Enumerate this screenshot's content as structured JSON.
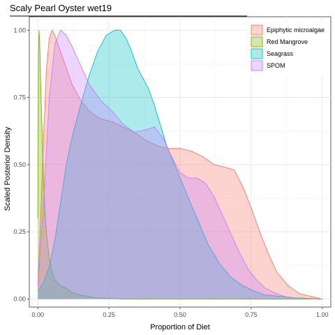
{
  "chart_data": {
    "type": "area",
    "title": "Scaly Pearl Oyster wet19",
    "xlabel": "Proportion of Diet",
    "ylabel": "Scaled Posterior Density",
    "xlim": [
      -0.03,
      1.03
    ],
    "ylim": [
      -0.03,
      1.05
    ],
    "x_ticks": [
      "0.00",
      "0.25",
      "0.50",
      "0.75",
      "1.00"
    ],
    "x_tick_values": [
      0,
      0.25,
      0.5,
      0.75,
      1.0
    ],
    "y_ticks": [
      "0.00",
      "0.25",
      "0.50",
      "0.75",
      "1.00"
    ],
    "y_tick_values": [
      0,
      0.25,
      0.5,
      0.75,
      1.0
    ],
    "grid": true,
    "legend_position": "top-right",
    "series": [
      {
        "name": "Epiphytic microalgae",
        "fill": "#F8766D",
        "stroke": "#F8766D",
        "x": [
          0.0,
          0.01,
          0.02,
          0.03,
          0.04,
          0.05,
          0.06,
          0.08,
          0.1,
          0.12,
          0.15,
          0.18,
          0.22,
          0.26,
          0.3,
          0.34,
          0.38,
          0.42,
          0.46,
          0.5,
          0.54,
          0.58,
          0.62,
          0.66,
          0.69,
          0.72,
          0.75,
          0.78,
          0.81,
          0.84,
          0.88,
          0.92,
          0.96,
          1.0
        ],
        "y": [
          0.05,
          0.3,
          0.6,
          0.85,
          0.97,
          1.0,
          0.98,
          0.92,
          0.86,
          0.8,
          0.74,
          0.7,
          0.67,
          0.66,
          0.64,
          0.62,
          0.59,
          0.57,
          0.56,
          0.56,
          0.55,
          0.53,
          0.5,
          0.49,
          0.48,
          0.42,
          0.34,
          0.25,
          0.17,
          0.1,
          0.05,
          0.02,
          0.01,
          0.0
        ]
      },
      {
        "name": "Red Mangrove",
        "fill": "#7CAE00",
        "stroke": "#7CAE00",
        "x": [
          0.0,
          0.002,
          0.004,
          0.006,
          0.008,
          0.01,
          0.015,
          0.02,
          0.025,
          0.03,
          0.04,
          0.05,
          0.06,
          0.07,
          0.08,
          0.1,
          0.12,
          0.15,
          0.2,
          0.3,
          0.5,
          0.7,
          1.0
        ],
        "y": [
          0.3,
          0.9,
          1.0,
          0.97,
          0.9,
          0.8,
          0.62,
          0.45,
          0.33,
          0.25,
          0.15,
          0.1,
          0.07,
          0.06,
          0.05,
          0.04,
          0.025,
          0.015,
          0.005,
          0.0,
          0.0,
          0.0,
          0.0
        ]
      },
      {
        "name": "Seagrass",
        "fill": "#00BFC4",
        "stroke": "#00BFC4",
        "x": [
          0.0,
          0.02,
          0.04,
          0.06,
          0.08,
          0.1,
          0.12,
          0.15,
          0.18,
          0.21,
          0.24,
          0.27,
          0.29,
          0.31,
          0.33,
          0.35,
          0.37,
          0.39,
          0.41,
          0.43,
          0.45,
          0.48,
          0.52,
          0.56,
          0.6,
          0.64,
          0.68,
          0.72,
          0.76,
          0.8,
          0.85,
          0.9,
          1.0
        ],
        "y": [
          0.03,
          0.06,
          0.12,
          0.22,
          0.36,
          0.5,
          0.6,
          0.72,
          0.83,
          0.92,
          0.98,
          1.0,
          1.0,
          0.97,
          0.92,
          0.86,
          0.82,
          0.78,
          0.72,
          0.65,
          0.58,
          0.5,
          0.4,
          0.3,
          0.2,
          0.13,
          0.08,
          0.05,
          0.03,
          0.015,
          0.01,
          0.005,
          0.0
        ]
      },
      {
        "name": "SPOM",
        "fill": "#C77CFF",
        "stroke": "#C77CFF",
        "x": [
          0.0,
          0.02,
          0.04,
          0.06,
          0.08,
          0.1,
          0.12,
          0.15,
          0.18,
          0.22,
          0.26,
          0.3,
          0.34,
          0.38,
          0.41,
          0.44,
          0.47,
          0.5,
          0.53,
          0.56,
          0.59,
          0.62,
          0.65,
          0.68,
          0.71,
          0.74,
          0.77,
          0.8,
          0.84,
          0.88,
          1.0
        ],
        "y": [
          0.05,
          0.35,
          0.75,
          0.95,
          1.0,
          0.98,
          0.94,
          0.87,
          0.8,
          0.74,
          0.7,
          0.65,
          0.62,
          0.63,
          0.64,
          0.6,
          0.53,
          0.47,
          0.45,
          0.45,
          0.43,
          0.38,
          0.31,
          0.24,
          0.17,
          0.11,
          0.07,
          0.04,
          0.02,
          0.005,
          0.0
        ]
      }
    ]
  }
}
